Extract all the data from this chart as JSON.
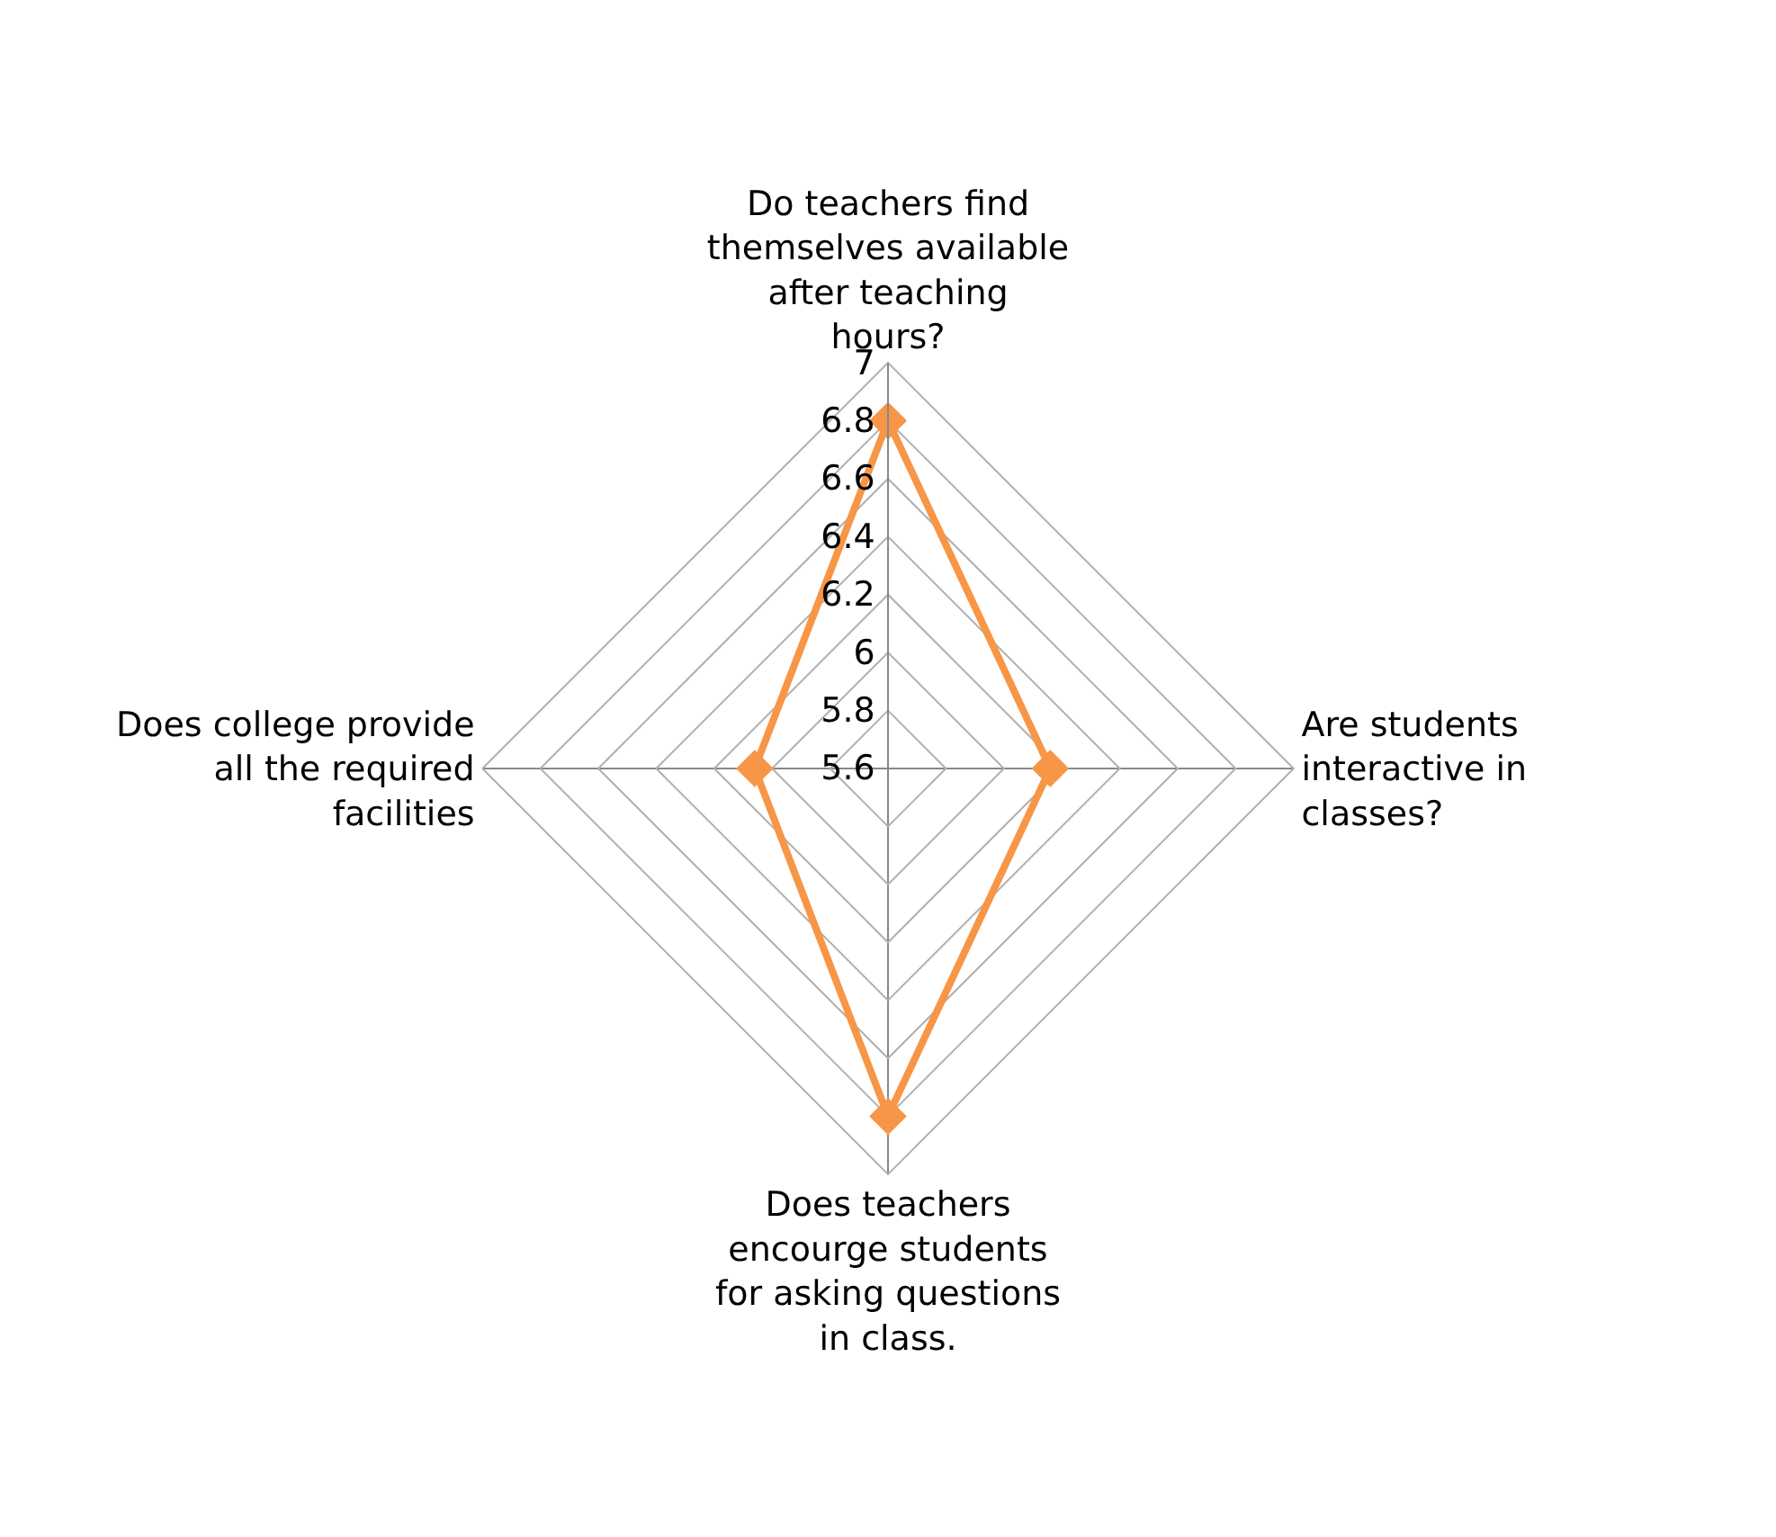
{
  "chart_data": {
    "type": "radar",
    "categories": [
      "Do teachers find themselves available after teaching hours?",
      "Are students interactive in classes?",
      "Does teachers encourge students for asking questions in class.",
      "Does college provide all the required facilities"
    ],
    "series": [
      {
        "color": "#f79646",
        "values": [
          6.8,
          6.16,
          6.8,
          6.06
        ]
      }
    ],
    "ylim": [
      5.6,
      7
    ],
    "yticks": [
      5.6,
      5.8,
      6,
      6.2,
      6.4,
      6.6,
      6.8,
      7
    ],
    "marker": "diamond",
    "line_style": "solid",
    "grid": true,
    "legend": false
  }
}
